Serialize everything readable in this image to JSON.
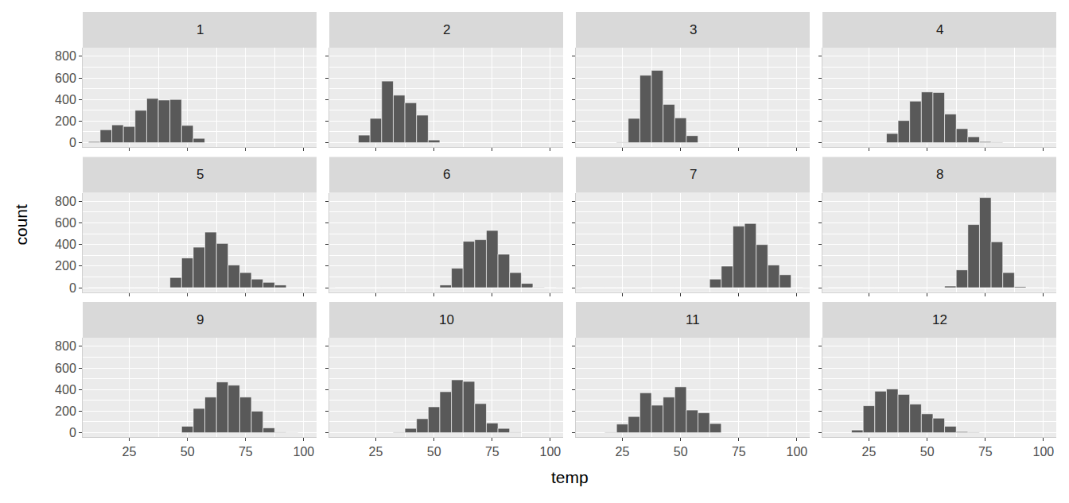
{
  "chart_data": {
    "type": "histogram",
    "x_label": "temp",
    "y_label": "count",
    "color": "#595959",
    "grid": true,
    "bins": [
      7.5,
      12.5,
      17.5,
      22.5,
      27.5,
      32.5,
      37.5,
      42.5,
      47.5,
      52.5,
      57.5,
      62.5,
      67.5,
      72.5,
      77.5,
      82.5,
      87.5,
      92.5,
      97.5,
      102.5
    ],
    "xlim": [
      5,
      105.5
    ],
    "xticks": [
      25,
      50,
      75,
      100
    ],
    "ylim": [
      -40,
      880
    ],
    "yticks": [
      0,
      200,
      400,
      600,
      800
    ],
    "series": [
      {
        "name": "1",
        "values": [
          10,
          120,
          165,
          150,
          300,
          410,
          395,
          400,
          160,
          40,
          0,
          0,
          0,
          0,
          0,
          0,
          0,
          0,
          0
        ]
      },
      {
        "name": "2",
        "values": [
          0,
          0,
          70,
          225,
          570,
          440,
          370,
          255,
          25,
          0,
          0,
          0,
          0,
          0,
          0,
          0,
          0,
          0,
          0
        ]
      },
      {
        "name": "3",
        "values": [
          0,
          0,
          0,
          5,
          225,
          625,
          670,
          355,
          230,
          65,
          0,
          0,
          0,
          0,
          0,
          0,
          0,
          0,
          0
        ]
      },
      {
        "name": "4",
        "values": [
          0,
          0,
          0,
          0,
          0,
          85,
          205,
          385,
          470,
          465,
          265,
          130,
          55,
          10,
          5,
          0,
          0,
          0,
          0
        ]
      },
      {
        "name": "5",
        "values": [
          0,
          0,
          0,
          0,
          0,
          0,
          3,
          95,
          275,
          375,
          515,
          410,
          210,
          140,
          80,
          50,
          25,
          0,
          0
        ]
      },
      {
        "name": "6",
        "values": [
          0,
          0,
          0,
          0,
          0,
          0,
          0,
          0,
          0,
          25,
          180,
          430,
          445,
          530,
          310,
          140,
          40,
          5,
          0
        ]
      },
      {
        "name": "7",
        "values": [
          0,
          0,
          0,
          0,
          0,
          0,
          0,
          0,
          0,
          0,
          0,
          80,
          200,
          570,
          595,
          400,
          210,
          120,
          0
        ]
      },
      {
        "name": "8",
        "values": [
          0,
          0,
          0,
          0,
          0,
          0,
          0,
          0,
          0,
          0,
          15,
          165,
          585,
          835,
          425,
          140,
          10,
          0,
          0
        ]
      },
      {
        "name": "9",
        "values": [
          0,
          0,
          0,
          0,
          0,
          0,
          0,
          0,
          60,
          225,
          330,
          470,
          440,
          330,
          200,
          45,
          5,
          3,
          0
        ]
      },
      {
        "name": "10",
        "values": [
          0,
          0,
          0,
          0,
          0,
          5,
          40,
          130,
          240,
          380,
          490,
          475,
          270,
          90,
          40,
          5,
          0,
          0,
          0
        ]
      },
      {
        "name": "11",
        "values": [
          0,
          0,
          5,
          80,
          150,
          370,
          255,
          330,
          425,
          210,
          185,
          85,
          0,
          0,
          0,
          0,
          0,
          0,
          0
        ]
      },
      {
        "name": "12",
        "values": [
          0,
          0,
          25,
          250,
          385,
          405,
          355,
          265,
          175,
          135,
          60,
          10,
          5,
          0,
          0,
          0,
          0,
          0,
          0
        ]
      }
    ]
  }
}
